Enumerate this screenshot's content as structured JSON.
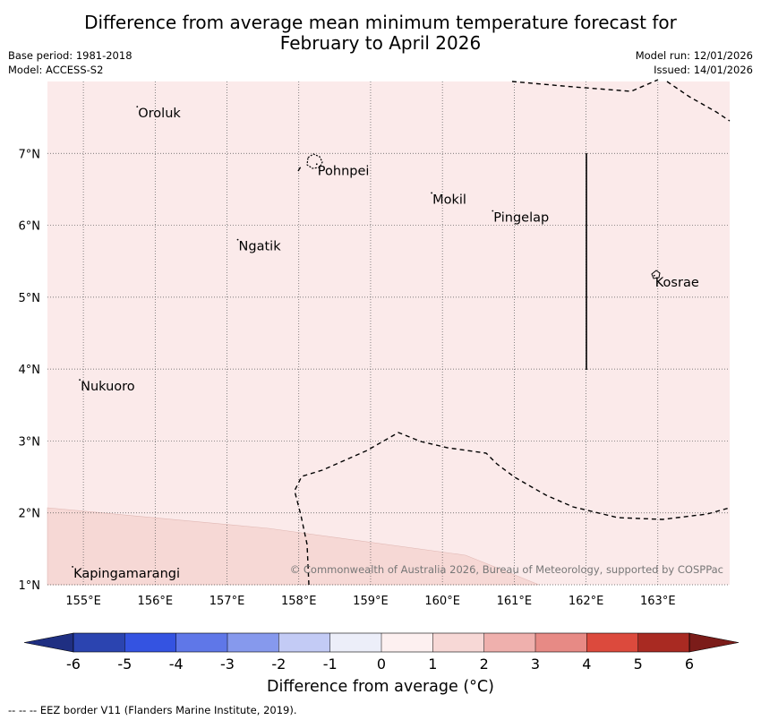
{
  "title_line1": "Difference from average mean minimum temperature forecast for",
  "title_line2": "February to April 2026",
  "base_period": "Base period: 1981-2018",
  "model": "Model: ACCESS-S2",
  "model_run": "Model run: 12/01/2026",
  "issued": "Issued: 14/01/2026",
  "map_extent": {
    "lon_min": 154.5,
    "lon_max": 164.0,
    "lat_min": 1.0,
    "lat_max": 8.0
  },
  "lon_ticks": [
    "155°E",
    "156°E",
    "157°E",
    "158°E",
    "159°E",
    "160°E",
    "161°E",
    "162°E",
    "163°E"
  ],
  "lat_ticks": [
    "7°N",
    "6°N",
    "5°N",
    "4°N",
    "3°N",
    "2°N",
    "1°N"
  ],
  "places": [
    {
      "name": "Oroluk",
      "lon": 155.75,
      "lat": 7.65
    },
    {
      "name": "Pohnpei",
      "lon": 158.25,
      "lat": 6.85
    },
    {
      "name": "Mokil",
      "lon": 159.85,
      "lat": 6.45
    },
    {
      "name": "Pingelap",
      "lon": 160.7,
      "lat": 6.2
    },
    {
      "name": "Ngatik",
      "lon": 157.15,
      "lat": 5.8
    },
    {
      "name": "Kosrae",
      "lon": 162.95,
      "lat": 5.3
    },
    {
      "name": "Nukuoro",
      "lon": 154.95,
      "lat": 3.85
    },
    {
      "name": "Kapingamarangi",
      "lon": 154.85,
      "lat": 1.25
    }
  ],
  "copyright": "© Commonwealth of Australia 2026, Bureau of Meteorology, supported by COSPPac",
  "colorbar": {
    "ticks": [
      "-6",
      "-5",
      "-4",
      "-3",
      "-2",
      "-1",
      "0",
      "1",
      "2",
      "3",
      "4",
      "5",
      "6"
    ],
    "colors": [
      "#2b44b0",
      "#3453e1",
      "#5f77e8",
      "#8699ed",
      "#c3cbf5",
      "#eceef9",
      "#fdf0f0",
      "#f7d8d6",
      "#efb0ad",
      "#e78a85",
      "#dc4a3d",
      "#a92a22"
    ],
    "low_extend_color": "#1f2f82",
    "high_extend_color": "#7b1c19",
    "label": "Difference from average (°C)"
  },
  "map_fill": {
    "base": "#fbeaea",
    "lower_band": "#f6d8d5"
  },
  "eez_note": "--  --  -- EEZ border V11 (Flanders Marine Institute, 2019)."
}
